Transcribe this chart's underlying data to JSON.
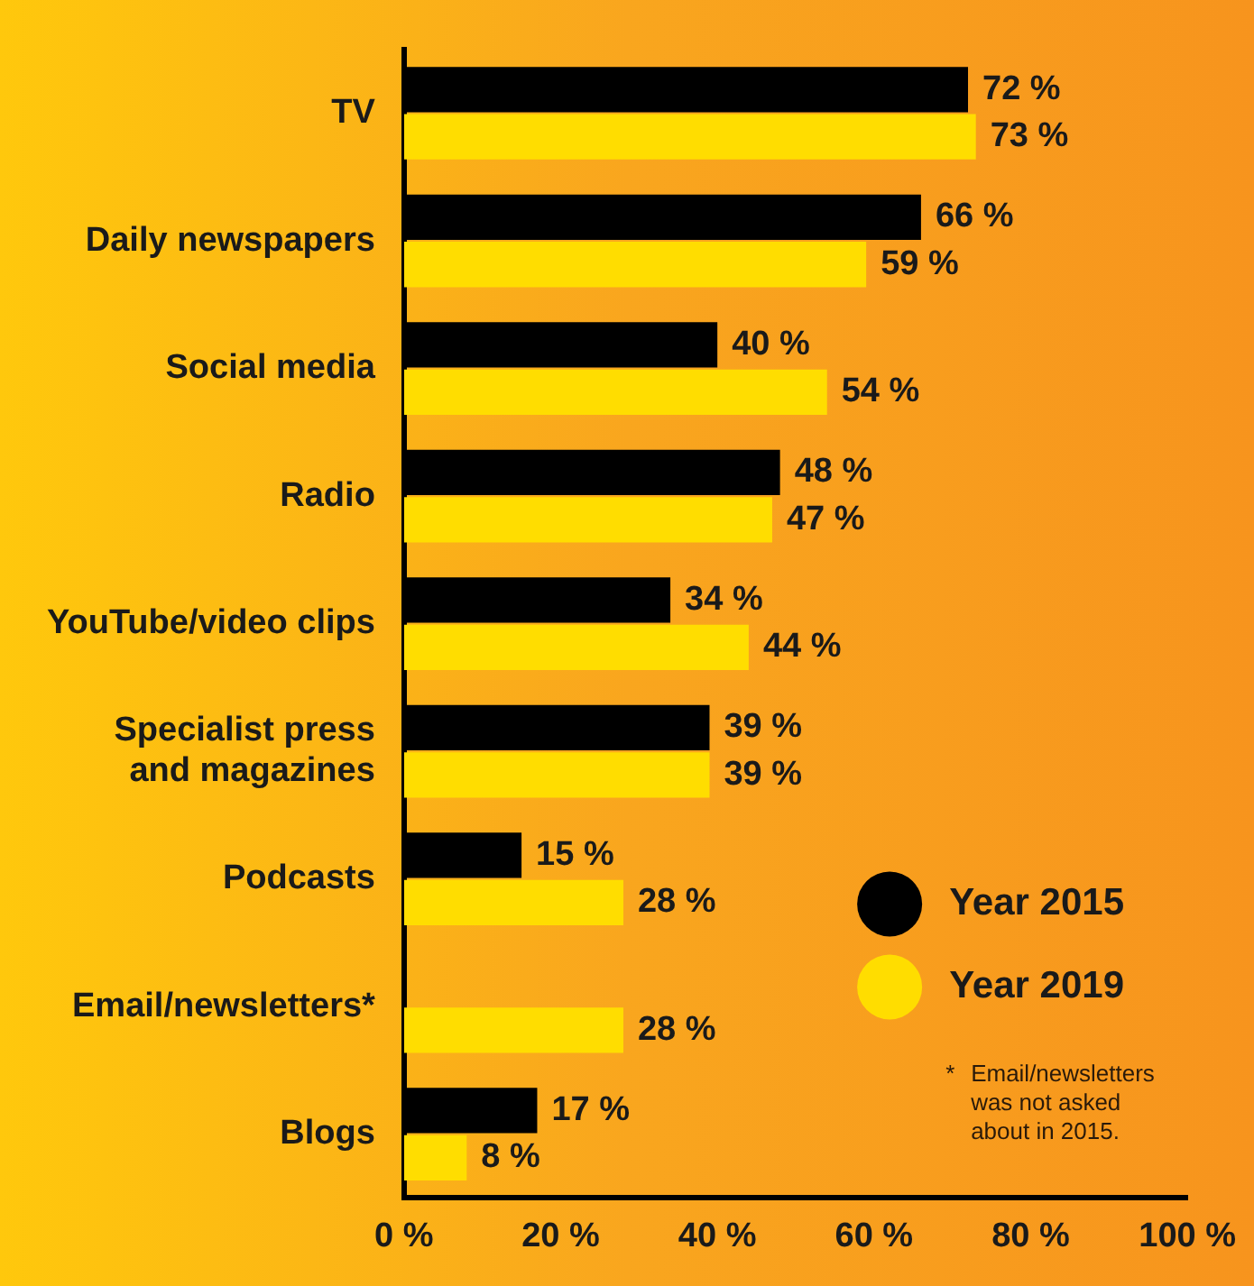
{
  "chart_data": {
    "type": "bar",
    "orientation": "horizontal",
    "categories": [
      "TV",
      "Daily newspapers",
      "Social media",
      "Radio",
      "YouTube/video clips",
      "Specialist press and magazines",
      "Podcasts",
      "Email/newsletters*",
      "Blogs"
    ],
    "series": [
      {
        "name": "Year 2015",
        "color": "#000000",
        "values": [
          72,
          66,
          40,
          48,
          34,
          39,
          15,
          null,
          17
        ],
        "value_labels": [
          "72 %",
          "66 %",
          "40 %",
          "48 %",
          "34 %",
          "39 %",
          "15 %",
          null,
          "17 %"
        ]
      },
      {
        "name": "Year 2019",
        "color": "#ffdd00",
        "values": [
          73,
          59,
          54,
          47,
          44,
          39,
          28,
          28,
          8
        ],
        "value_labels": [
          "73 %",
          "59 %",
          "54 %",
          "47 %",
          "44 %",
          "39 %",
          "28 %",
          "28 %",
          "8 %"
        ]
      }
    ],
    "xlim": [
      0,
      100
    ],
    "xticks": [
      {
        "value": 0,
        "label": "0 %"
      },
      {
        "value": 20,
        "label": "20 %"
      },
      {
        "value": 40,
        "label": "40 %"
      },
      {
        "value": 60,
        "label": "60 %"
      },
      {
        "value": 80,
        "label": "80 %"
      },
      {
        "value": 100,
        "label": "100 %"
      }
    ],
    "grid": false,
    "legend": "bottom right",
    "annotations": [
      "* Email/newsletters was not asked about in 2015."
    ]
  }
}
